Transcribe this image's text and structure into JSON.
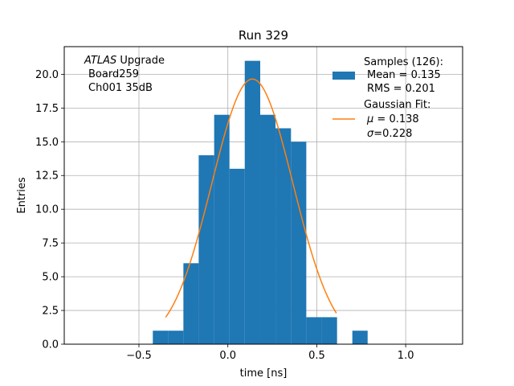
{
  "chart_data": {
    "type": "histogram",
    "title": "Run 329",
    "xlabel": "time [ns]",
    "ylabel": "Entries",
    "xlim": [
      -0.92,
      1.32
    ],
    "ylim": [
      0,
      22.05
    ],
    "grid": true,
    "x_ticks": [
      -0.5,
      0.0,
      0.5,
      1.0
    ],
    "x_tick_labels": [
      "−0.5",
      "0.0",
      "0.5",
      "1.0"
    ],
    "y_ticks": [
      0.0,
      2.5,
      5.0,
      7.5,
      10.0,
      12.5,
      15.0,
      17.5,
      20.0
    ],
    "y_tick_labels": [
      "0.0",
      "2.5",
      "5.0",
      "7.5",
      "10.0",
      "12.5",
      "15.0",
      "17.5",
      "20.0"
    ],
    "histogram": {
      "name": "Samples (126)",
      "color": "#1f77b4",
      "bins": [
        {
          "x0": -0.422,
          "x1": -0.336,
          "count": 1
        },
        {
          "x0": -0.336,
          "x1": -0.25,
          "count": 1
        },
        {
          "x0": -0.25,
          "x1": -0.164,
          "count": 6
        },
        {
          "x0": -0.164,
          "x1": -0.077,
          "count": 14
        },
        {
          "x0": -0.077,
          "x1": 0.009,
          "count": 17
        },
        {
          "x0": 0.009,
          "x1": 0.095,
          "count": 13
        },
        {
          "x0": 0.095,
          "x1": 0.182,
          "count": 21
        },
        {
          "x0": 0.182,
          "x1": 0.268,
          "count": 17
        },
        {
          "x0": 0.268,
          "x1": 0.355,
          "count": 16
        },
        {
          "x0": 0.355,
          "x1": 0.441,
          "count": 15
        },
        {
          "x0": 0.441,
          "x1": 0.527,
          "count": 2
        },
        {
          "x0": 0.527,
          "x1": 0.614,
          "count": 2
        },
        {
          "x0": 0.614,
          "x1": 0.7,
          "count": 0
        },
        {
          "x0": 0.7,
          "x1": 0.786,
          "count": 1
        }
      ]
    },
    "fit": {
      "name": "Gaussian Fit",
      "color": "#ff7f0e",
      "mu": 0.138,
      "sigma": 0.228,
      "amplitude": 19.65,
      "x_range": [
        -0.35,
        0.61
      ]
    },
    "legend": {
      "placement": "upper-right",
      "samples_title": "Samples (126):",
      "samples_mean": "Mean = 0.135",
      "samples_rms": "RMS = 0.201",
      "fit_title": "Gaussian Fit:",
      "fit_mu_symbol": "μ",
      "fit_mu_value": " = 0.138",
      "fit_sigma_symbol": "σ",
      "fit_sigma_value": "=0.228"
    },
    "annotation": {
      "placement": "upper-left",
      "experiment": "ATLAS",
      "experiment_suffix": " Upgrade",
      "board": "Board259",
      "channel": "Ch001 35dB"
    },
    "colors": {
      "grid": "#b0b0b0",
      "axis": "#000000"
    }
  }
}
